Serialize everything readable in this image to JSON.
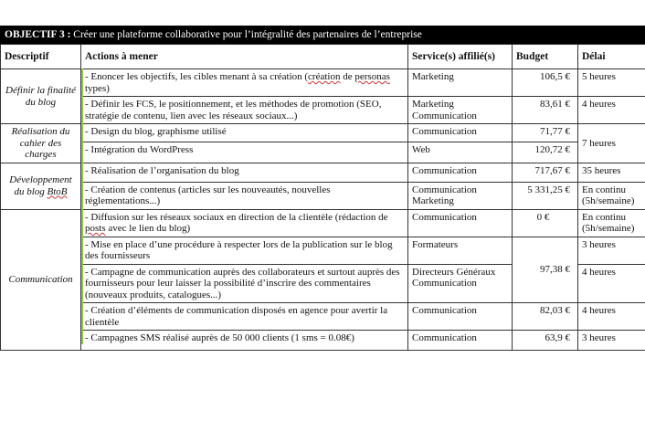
{
  "title": {
    "label": "OBJECTIF 3 :",
    "text": "Créer une plateforme collaborative pour l’intégralité des partenaires de l’entreprise"
  },
  "headers": [
    "Descriptif",
    "Actions à mener",
    "Service(s) affilié(s)",
    "Budget",
    "Délai"
  ],
  "groups": {
    "g1": "Définir la finalité du blog",
    "g2": "Réalisation du cahier des charges",
    "g3a": "Développement du blog ",
    "g3b": "BtoB",
    "g4": "Communication"
  },
  "rows": [
    {
      "action_a": "- Enoncer les objectifs, les cibles menant à sa création (",
      "action_sq1": "création",
      "action_b": " de ",
      "action_sq2": "personas",
      "action_c": " types)",
      "service": "Marketing",
      "budget": "106,5 €",
      "delai": "5 heures"
    },
    {
      "action": "- Définir les FCS, le positionnement, et les méthodes de promotion (SEO, stratégie de contenu, lien avec les réseaux sociaux...)",
      "service": "Marketing Communication",
      "budget": "83,61 €",
      "delai": "4 heures"
    },
    {
      "action": "- Design du blog, graphisme utilisé",
      "service": "Communication",
      "budget": "71,77 €",
      "delai": "7 heures"
    },
    {
      "action": "- Intégration du WordPress",
      "service": "Web",
      "budget": "120,72 €"
    },
    {
      "action": "- Réalisation de l’organisation du blog",
      "service": "Communication",
      "budget": "717,67 €",
      "delai": "35 heures"
    },
    {
      "action": "- Création de contenus (articles sur les nouveautés, nouvelles réglementations...)",
      "service": "Communication Marketing",
      "budget": "5 331,25 €",
      "delai": "En continu (5h/semaine)"
    },
    {
      "action_a": "- Diffusion sur les réseaux sociaux en direction de la clientèle (rédaction de ",
      "action_sq": "posts",
      "action_b": " avec le lien du blog)",
      "service": "Communication",
      "budget": "0 €",
      "delai": "En continu (5h/semaine)"
    },
    {
      "action": "- Mise en place d’une procédure à respecter lors de la publication sur le blog des fournisseurs",
      "service": "Formateurs",
      "budget": "97,38 €",
      "delai": "3 heures"
    },
    {
      "action": "- Campagne de communication auprès des collaborateurs et surtout auprès des fournisseurs pour leur laisser la possibilité d’inscrire des commentaires (nouveaux produits, catalogues...)",
      "service": "Directeurs Généraux Communication",
      "delai": "4 heures"
    },
    {
      "action": "- Création d’éléments de communication disposés en agence pour avertir la clientèle",
      "service": "Communication",
      "budget": "82,03 €",
      "delai": "4 heures"
    },
    {
      "action": "- Campagnes SMS réalisé auprès de 50 000 clients (1 sms = 0.08€)",
      "service": "Communication",
      "budget": "63,9 €",
      "delai": "3 heures"
    }
  ]
}
